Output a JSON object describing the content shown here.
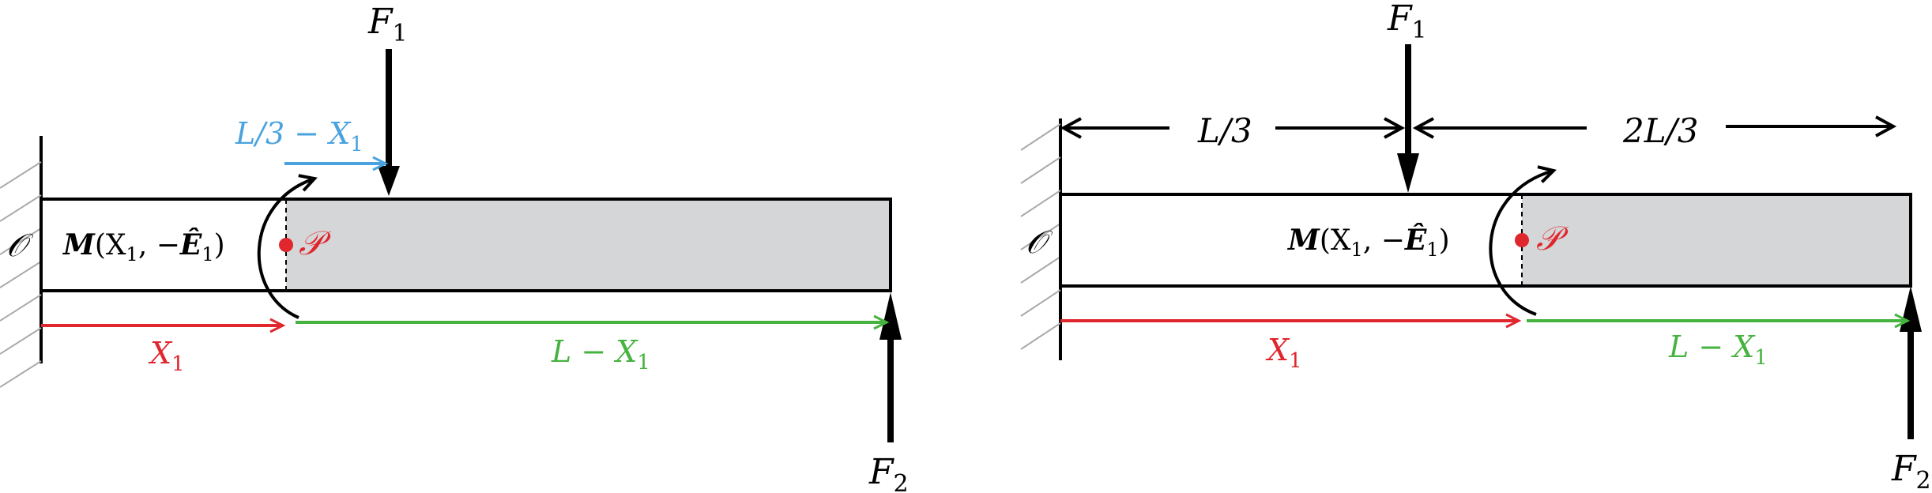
{
  "colors": {
    "black": "#000000",
    "red": "#e0272e",
    "green": "#46b340",
    "blue": "#4aa3df",
    "beam_shade": "#d5d6d8",
    "hatch": "#999999"
  },
  "left_diagram": {
    "force_top": {
      "main": "F",
      "sub": "1"
    },
    "force_bottom": {
      "main": "F",
      "sub": "2"
    },
    "origin_label": "𝒪",
    "point_label": "𝒫",
    "moment_label": {
      "bold": "M",
      "open": "(X",
      "sub": "1",
      "mid": ", −",
      "vec": "Ê",
      "sub2": "1",
      "close": ")"
    },
    "offset_label": {
      "part1": "L/3 − X",
      "sub": "1"
    },
    "x1_label": {
      "main": "X",
      "sub": "1"
    },
    "lx1_label": {
      "main": "L − X",
      "sub": "1"
    }
  },
  "right_diagram": {
    "force_top": {
      "main": "F",
      "sub": "1"
    },
    "force_bottom": {
      "main": "F",
      "sub": "2"
    },
    "origin_label": "𝒪",
    "point_label": "𝒫",
    "moment_label": {
      "bold": "M",
      "open": "(X",
      "sub": "1",
      "mid": ", −",
      "vec": "Ê",
      "sub2": "1",
      "close": ")"
    },
    "dim_left": "L/3",
    "dim_right": "2L/3",
    "x1_label": {
      "main": "X",
      "sub": "1"
    },
    "lx1_label": {
      "main": "L − X",
      "sub": "1"
    }
  }
}
